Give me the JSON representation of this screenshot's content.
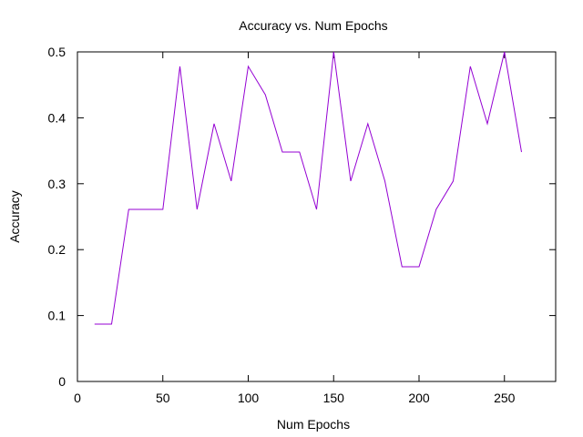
{
  "chart_data": {
    "type": "line",
    "title": "Accuracy vs. Num Epochs",
    "xlabel": "Num Epochs",
    "ylabel": "Accuracy",
    "xlim": [
      0,
      280
    ],
    "ylim": [
      0,
      0.5
    ],
    "xticks": [
      0,
      50,
      100,
      150,
      200,
      250
    ],
    "yticks": [
      0,
      0.1,
      0.2,
      0.3,
      0.4,
      0.5
    ],
    "xtick_labels": [
      "0",
      "50",
      "100",
      "150",
      "200",
      "250"
    ],
    "ytick_labels": [
      "0",
      "0.1",
      "0.2",
      "0.3",
      "0.4",
      "0.5"
    ],
    "grid": false,
    "legend": "none",
    "series": [
      {
        "color": "#9400d3",
        "x": [
          10,
          20,
          30,
          40,
          50,
          60,
          70,
          80,
          90,
          100,
          110,
          120,
          130,
          140,
          150,
          160,
          170,
          180,
          190,
          200,
          210,
          220,
          230,
          240,
          250,
          260
        ],
        "y": [
          0.087,
          0.087,
          0.261,
          0.261,
          0.261,
          0.478,
          0.261,
          0.391,
          0.304,
          0.478,
          0.435,
          0.348,
          0.348,
          0.261,
          0.5,
          0.304,
          0.391,
          0.304,
          0.174,
          0.174,
          0.261,
          0.304,
          0.478,
          0.391,
          0.5,
          0.348
        ]
      }
    ]
  }
}
